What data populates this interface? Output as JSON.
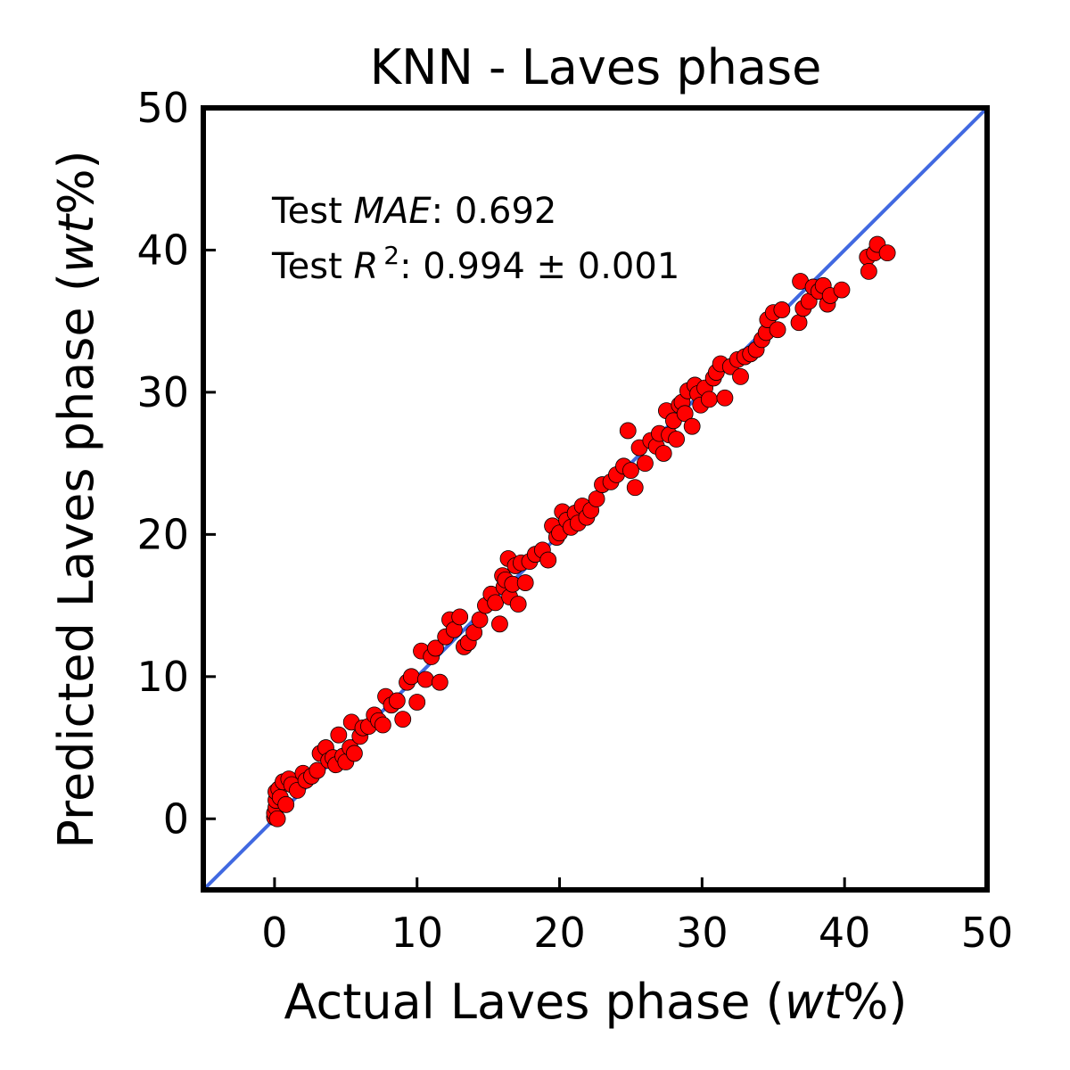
{
  "chart_data": {
    "type": "scatter",
    "title": "KNN - Laves phase",
    "xlabel": {
      "prefix": "Actual Laves phase (",
      "italic": "wt",
      "suffix": "%)"
    },
    "ylabel": {
      "prefix": "Predicted Laves phase (",
      "italic": "wt",
      "suffix": "%)"
    },
    "xlim": [
      -5,
      50
    ],
    "ylim": [
      -5,
      50
    ],
    "xticks": [
      0,
      10,
      20,
      30,
      40,
      50
    ],
    "yticks": [
      0,
      10,
      20,
      30,
      40,
      50
    ],
    "grid": false,
    "annotations": {
      "mae": {
        "prefix": "Test ",
        "italic": "MAE",
        "suffix": ": 0.692"
      },
      "r2": {
        "prefix": "Test ",
        "italic": "R",
        "sup": "2",
        "suffix": ": 0.994 ± 0.001"
      }
    },
    "identity_line": {
      "from": [
        -5,
        -5
      ],
      "to": [
        50,
        50
      ],
      "color": "#4169e1"
    },
    "marker_color": "#ff0000",
    "marker_edge_color": "#000000",
    "points": [
      [
        0.0,
        0.1
      ],
      [
        0.0,
        0.4
      ],
      [
        0.1,
        0.8
      ],
      [
        0.1,
        1.3
      ],
      [
        0.1,
        1.9
      ],
      [
        0.2,
        0.0
      ],
      [
        0.3,
        2.1
      ],
      [
        0.4,
        1.5
      ],
      [
        0.6,
        2.6
      ],
      [
        0.8,
        1.0
      ],
      [
        1.0,
        2.8
      ],
      [
        1.2,
        2.4
      ],
      [
        1.6,
        2.0
      ],
      [
        2.0,
        3.2
      ],
      [
        2.2,
        2.7
      ],
      [
        2.6,
        3.0
      ],
      [
        3.0,
        3.4
      ],
      [
        3.2,
        4.6
      ],
      [
        3.6,
        5.0
      ],
      [
        3.8,
        4.1
      ],
      [
        4.1,
        4.3
      ],
      [
        4.3,
        3.8
      ],
      [
        4.5,
        5.9
      ],
      [
        4.8,
        4.4
      ],
      [
        5.0,
        4.0
      ],
      [
        5.3,
        5.0
      ],
      [
        5.4,
        6.8
      ],
      [
        5.6,
        4.6
      ],
      [
        6.0,
        5.8
      ],
      [
        6.2,
        6.4
      ],
      [
        6.6,
        6.5
      ],
      [
        7.0,
        7.3
      ],
      [
        7.3,
        6.9
      ],
      [
        7.6,
        6.6
      ],
      [
        7.8,
        8.6
      ],
      [
        8.2,
        8.0
      ],
      [
        8.6,
        8.3
      ],
      [
        9.0,
        7.0
      ],
      [
        9.3,
        9.6
      ],
      [
        9.6,
        10.0
      ],
      [
        10.0,
        8.2
      ],
      [
        10.3,
        11.8
      ],
      [
        10.6,
        9.8
      ],
      [
        11.0,
        11.4
      ],
      [
        11.3,
        12.0
      ],
      [
        11.6,
        9.6
      ],
      [
        12.0,
        12.8
      ],
      [
        12.3,
        14.0
      ],
      [
        12.6,
        13.3
      ],
      [
        13.0,
        14.2
      ],
      [
        13.3,
        12.1
      ],
      [
        13.6,
        12.4
      ],
      [
        14.0,
        13.1
      ],
      [
        14.4,
        14.0
      ],
      [
        14.8,
        15.0
      ],
      [
        15.2,
        15.8
      ],
      [
        15.5,
        15.2
      ],
      [
        15.8,
        13.7
      ],
      [
        16.0,
        17.1
      ],
      [
        16.1,
        16.3
      ],
      [
        16.2,
        16.8
      ],
      [
        16.4,
        18.3
      ],
      [
        16.5,
        15.6
      ],
      [
        16.7,
        16.5
      ],
      [
        16.9,
        17.8
      ],
      [
        17.1,
        15.1
      ],
      [
        17.3,
        18.0
      ],
      [
        17.6,
        16.6
      ],
      [
        17.9,
        18.1
      ],
      [
        18.3,
        18.6
      ],
      [
        18.8,
        18.9
      ],
      [
        19.2,
        18.2
      ],
      [
        19.5,
        20.6
      ],
      [
        19.8,
        19.8
      ],
      [
        20.0,
        20.1
      ],
      [
        20.2,
        21.6
      ],
      [
        20.5,
        21.0
      ],
      [
        20.8,
        20.5
      ],
      [
        21.1,
        21.5
      ],
      [
        21.3,
        20.8
      ],
      [
        21.6,
        22.0
      ],
      [
        21.9,
        21.2
      ],
      [
        22.2,
        21.7
      ],
      [
        22.6,
        22.5
      ],
      [
        23.0,
        23.5
      ],
      [
        23.6,
        23.7
      ],
      [
        24.0,
        24.2
      ],
      [
        24.5,
        24.8
      ],
      [
        24.8,
        27.3
      ],
      [
        25.0,
        24.5
      ],
      [
        25.3,
        23.3
      ],
      [
        25.6,
        26.1
      ],
      [
        26.0,
        25.0
      ],
      [
        26.4,
        26.6
      ],
      [
        26.8,
        26.2
      ],
      [
        27.0,
        27.1
      ],
      [
        27.3,
        25.7
      ],
      [
        27.5,
        28.7
      ],
      [
        27.7,
        27.0
      ],
      [
        28.0,
        28.0
      ],
      [
        28.2,
        26.7
      ],
      [
        28.4,
        29.1
      ],
      [
        28.6,
        29.3
      ],
      [
        28.8,
        28.5
      ],
      [
        29.0,
        30.1
      ],
      [
        29.3,
        27.6
      ],
      [
        29.5,
        30.5
      ],
      [
        29.7,
        29.9
      ],
      [
        29.9,
        29.1
      ],
      [
        30.2,
        30.3
      ],
      [
        30.5,
        29.5
      ],
      [
        30.8,
        31.0
      ],
      [
        31.0,
        31.4
      ],
      [
        31.3,
        32.0
      ],
      [
        31.6,
        29.6
      ],
      [
        32.0,
        31.8
      ],
      [
        32.5,
        32.3
      ],
      [
        32.7,
        31.1
      ],
      [
        33.0,
        32.5
      ],
      [
        33.4,
        32.7
      ],
      [
        33.8,
        33.0
      ],
      [
        34.2,
        33.7
      ],
      [
        34.5,
        34.2
      ],
      [
        34.6,
        35.1
      ],
      [
        35.0,
        35.6
      ],
      [
        35.3,
        34.4
      ],
      [
        35.6,
        35.8
      ],
      [
        36.8,
        34.9
      ],
      [
        36.9,
        37.8
      ],
      [
        37.1,
        35.9
      ],
      [
        37.5,
        36.4
      ],
      [
        37.8,
        37.4
      ],
      [
        38.2,
        37.1
      ],
      [
        38.5,
        37.5
      ],
      [
        38.8,
        36.2
      ],
      [
        39.0,
        36.8
      ],
      [
        39.8,
        37.2
      ],
      [
        41.6,
        39.5
      ],
      [
        41.7,
        38.5
      ],
      [
        42.1,
        39.8
      ],
      [
        42.3,
        40.4
      ],
      [
        43.0,
        39.8
      ]
    ]
  }
}
